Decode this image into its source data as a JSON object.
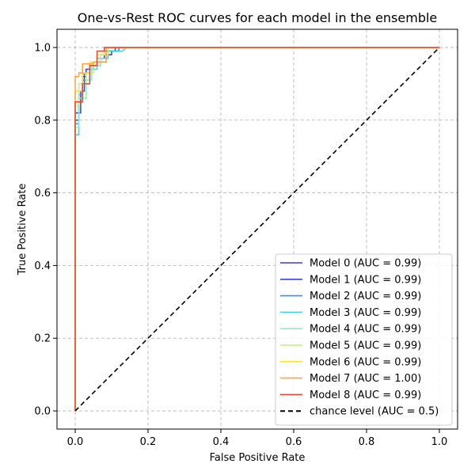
{
  "chart_data": {
    "type": "line",
    "title": "One-vs-Rest ROC curves for each model in the ensemble",
    "xlabel": "False Positive Rate",
    "ylabel": "True Positive Rate",
    "xlim": [
      -0.05,
      1.05
    ],
    "ylim": [
      -0.05,
      1.05
    ],
    "xticks": [
      "0.0",
      "0.2",
      "0.4",
      "0.6",
      "0.8",
      "1.0"
    ],
    "yticks": [
      "0.0",
      "0.2",
      "0.4",
      "0.6",
      "0.8",
      "1.0"
    ],
    "grid": true,
    "legend_position": "lower-right",
    "series": [
      {
        "name": "Model 0 (AUC = 0.99)",
        "color": "#3f3fbf",
        "x": [
          0,
          0,
          0.01,
          0.01,
          0.02,
          0.02,
          0.03,
          0.03,
          0.05,
          0.05,
          0.07,
          0.07,
          0.1,
          0.1,
          0.12,
          0.12,
          1.0
        ],
        "y": [
          0,
          0.8,
          0.8,
          0.86,
          0.86,
          0.92,
          0.92,
          0.94,
          0.94,
          0.96,
          0.96,
          0.98,
          0.98,
          0.99,
          0.99,
          1.0,
          1.0
        ]
      },
      {
        "name": "Model 1 (AUC = 0.99)",
        "color": "#4040d8",
        "x": [
          0,
          0,
          0.015,
          0.015,
          0.025,
          0.025,
          0.04,
          0.04,
          0.06,
          0.06,
          0.08,
          0.08,
          0.11,
          0.11,
          1.0
        ],
        "y": [
          0,
          0.82,
          0.82,
          0.88,
          0.88,
          0.93,
          0.93,
          0.95,
          0.95,
          0.97,
          0.97,
          0.99,
          0.99,
          1.0,
          1.0
        ]
      },
      {
        "name": "Model 2 (AUC = 0.99)",
        "color": "#3a8ff0",
        "x": [
          0,
          0,
          0.01,
          0.01,
          0.02,
          0.02,
          0.04,
          0.04,
          0.07,
          0.07,
          0.09,
          0.09,
          0.12,
          0.12,
          1.0
        ],
        "y": [
          0,
          0.79,
          0.79,
          0.87,
          0.87,
          0.91,
          0.91,
          0.95,
          0.95,
          0.97,
          0.97,
          0.99,
          0.99,
          1.0,
          1.0
        ]
      },
      {
        "name": "Model 3 (AUC = 0.99)",
        "color": "#3ed4e0",
        "x": [
          0,
          0,
          0.01,
          0.01,
          0.02,
          0.02,
          0.04,
          0.04,
          0.06,
          0.06,
          0.09,
          0.09,
          0.12,
          0.13,
          0.14,
          1.0
        ],
        "y": [
          0,
          0.76,
          0.76,
          0.85,
          0.85,
          0.9,
          0.9,
          0.94,
          0.94,
          0.97,
          0.97,
          0.99,
          0.99,
          0.99,
          1.0,
          1.0
        ]
      },
      {
        "name": "Model 4 (AUC = 0.99)",
        "color": "#7ff5c0",
        "x": [
          0,
          0,
          0.01,
          0.01,
          0.03,
          0.03,
          0.045,
          0.045,
          0.07,
          0.07,
          0.08,
          0.08,
          1.0
        ],
        "y": [
          0,
          0.78,
          0.78,
          0.86,
          0.86,
          0.91,
          0.91,
          0.95,
          0.95,
          0.98,
          0.98,
          1.0,
          1.0
        ]
      },
      {
        "name": "Model 5 (AUC = 0.99)",
        "color": "#c2f07a",
        "x": [
          0,
          0,
          0.01,
          0.01,
          0.03,
          0.03,
          0.05,
          0.05,
          0.07,
          0.07,
          0.09,
          0.09,
          1.0
        ],
        "y": [
          0,
          0.84,
          0.84,
          0.9,
          0.9,
          0.93,
          0.93,
          0.96,
          0.96,
          0.98,
          0.98,
          1.0,
          1.0
        ]
      },
      {
        "name": "Model 6 (AUC = 0.99)",
        "color": "#f5e342",
        "x": [
          0,
          0,
          0.02,
          0.02,
          0.04,
          0.04,
          0.06,
          0.06,
          0.08,
          0.08,
          1.0
        ],
        "y": [
          0,
          0.88,
          0.88,
          0.93,
          0.93,
          0.96,
          0.96,
          0.98,
          0.98,
          1.0,
          1.0
        ]
      },
      {
        "name": "Model 7 (AUC = 1.00)",
        "color": "#ffa040",
        "x": [
          0,
          0,
          0.01,
          0.01,
          0.02,
          0.02,
          0.05,
          0.05,
          0.085,
          0.085,
          1.0
        ],
        "y": [
          0,
          0.92,
          0.92,
          0.93,
          0.93,
          0.955,
          0.955,
          0.96,
          0.96,
          1.0,
          1.0
        ]
      },
      {
        "name": "Model 8 (AUC = 0.99)",
        "color": "#e8492a",
        "x": [
          0,
          0,
          0.02,
          0.02,
          0.04,
          0.04,
          0.06,
          0.06,
          0.08,
          0.08,
          1.0
        ],
        "y": [
          0,
          0.85,
          0.85,
          0.9,
          0.9,
          0.95,
          0.95,
          0.99,
          0.99,
          1.0,
          1.0
        ]
      },
      {
        "name": "chance level (AUC = 0.5)",
        "color": "#000000",
        "dashed": true,
        "x": [
          0,
          1
        ],
        "y": [
          0,
          1
        ]
      }
    ]
  }
}
